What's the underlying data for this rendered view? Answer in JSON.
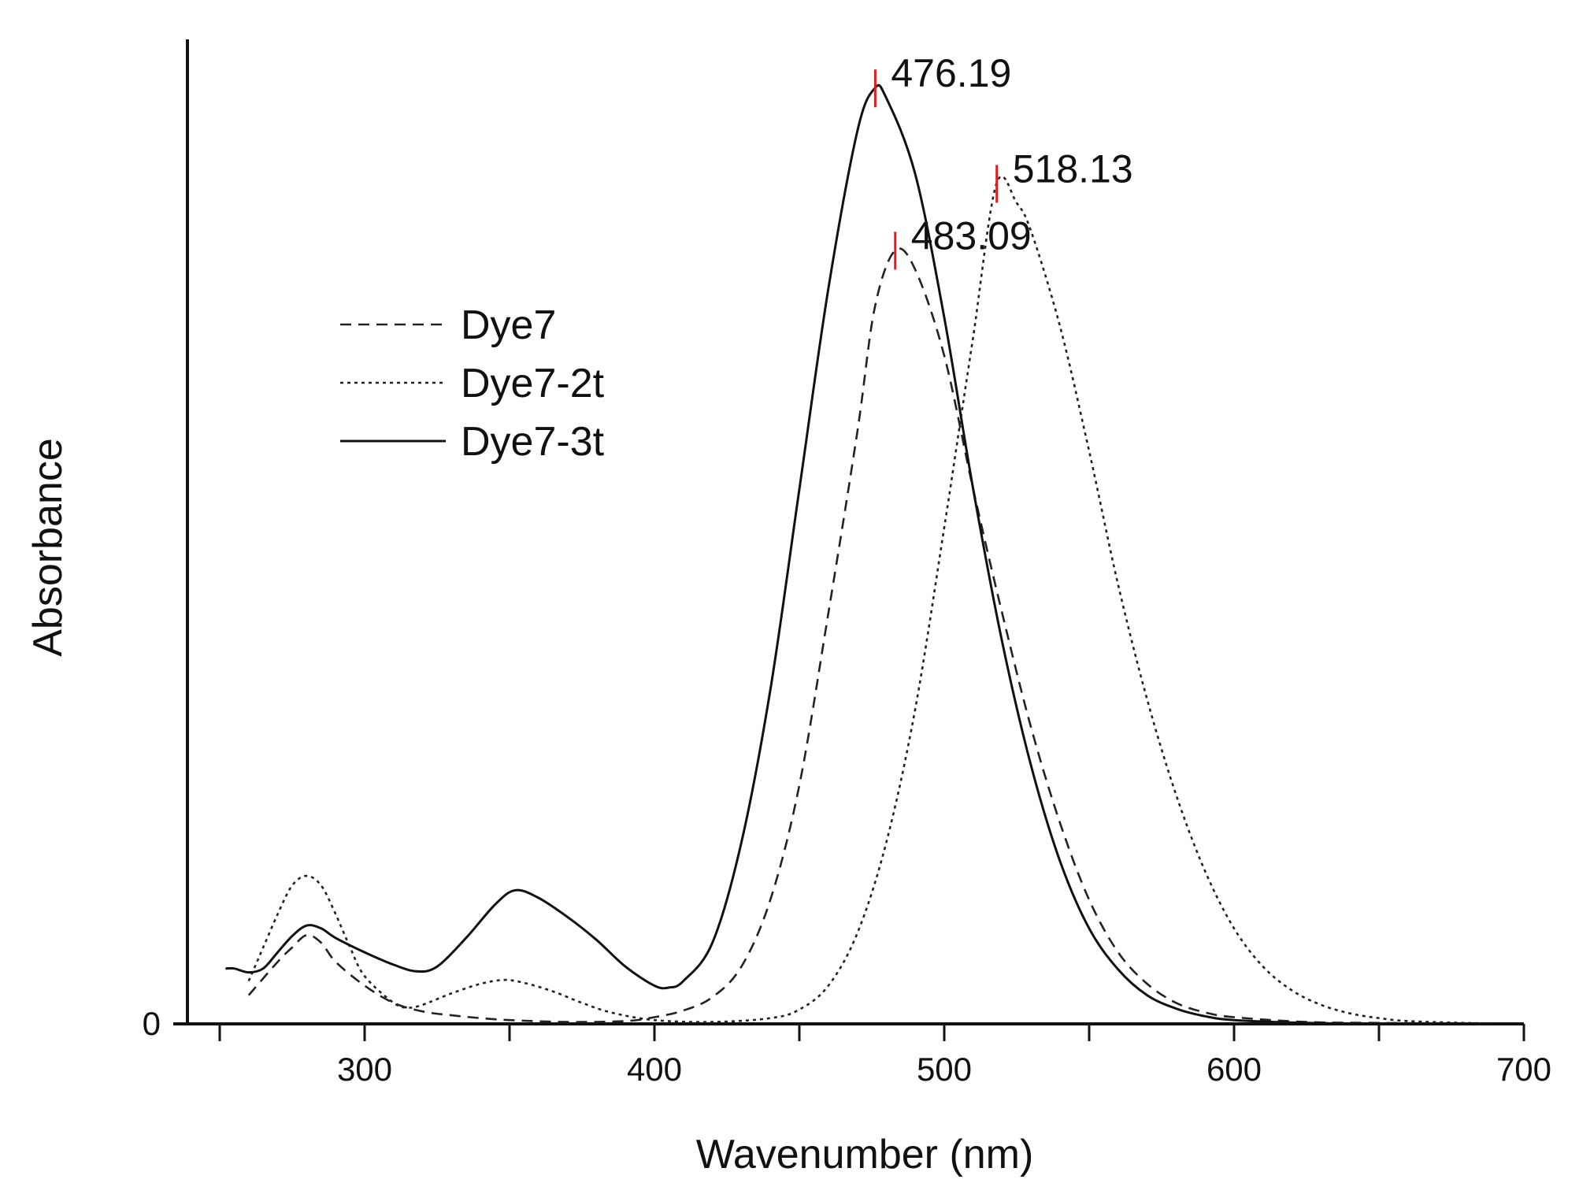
{
  "chart_data": {
    "type": "line",
    "title": "",
    "xlabel": "Wavenumber (nm)",
    "ylabel": "Absorbance",
    "xlim": [
      250,
      700
    ],
    "ylim": [
      0,
      1.0
    ],
    "x_ticks": [
      300,
      400,
      500,
      600,
      700
    ],
    "x_minor_ticks": [
      250,
      350,
      450,
      550,
      650
    ],
    "y_ticks": [
      0
    ],
    "grid": false,
    "legend_position": "left",
    "series": [
      {
        "name": "Dye7",
        "style": "dashed",
        "color": "#222222",
        "peak_nm": 483.09,
        "points": [
          [
            260,
            0.03
          ],
          [
            270,
            0.065
          ],
          [
            275,
            0.08
          ],
          [
            280,
            0.093
          ],
          [
            285,
            0.085
          ],
          [
            290,
            0.065
          ],
          [
            300,
            0.04
          ],
          [
            310,
            0.022
          ],
          [
            320,
            0.013
          ],
          [
            330,
            0.009
          ],
          [
            340,
            0.006
          ],
          [
            350,
            0.004
          ],
          [
            370,
            0.002
          ],
          [
            390,
            0.003
          ],
          [
            400,
            0.007
          ],
          [
            410,
            0.014
          ],
          [
            420,
            0.028
          ],
          [
            430,
            0.06
          ],
          [
            440,
            0.13
          ],
          [
            450,
            0.25
          ],
          [
            460,
            0.43
          ],
          [
            470,
            0.62
          ],
          [
            476,
            0.75
          ],
          [
            483,
            0.81
          ],
          [
            490,
            0.79
          ],
          [
            500,
            0.7
          ],
          [
            510,
            0.56
          ],
          [
            520,
            0.43
          ],
          [
            530,
            0.31
          ],
          [
            540,
            0.21
          ],
          [
            550,
            0.13
          ],
          [
            560,
            0.075
          ],
          [
            570,
            0.042
          ],
          [
            580,
            0.022
          ],
          [
            590,
            0.012
          ],
          [
            600,
            0.007
          ],
          [
            625,
            0.002
          ],
          [
            650,
            0.001
          ],
          [
            700,
            0.0
          ]
        ]
      },
      {
        "name": "Dye7-2t",
        "style": "dotted",
        "color": "#222222",
        "peak_nm": 518.13,
        "points": [
          [
            260,
            0.045
          ],
          [
            265,
            0.08
          ],
          [
            270,
            0.115
          ],
          [
            275,
            0.145
          ],
          [
            280,
            0.155
          ],
          [
            285,
            0.145
          ],
          [
            290,
            0.115
          ],
          [
            295,
            0.08
          ],
          [
            300,
            0.05
          ],
          [
            310,
            0.022
          ],
          [
            315,
            0.017
          ],
          [
            320,
            0.02
          ],
          [
            330,
            0.032
          ],
          [
            340,
            0.042
          ],
          [
            348,
            0.046
          ],
          [
            355,
            0.043
          ],
          [
            365,
            0.034
          ],
          [
            375,
            0.022
          ],
          [
            385,
            0.012
          ],
          [
            400,
            0.004
          ],
          [
            420,
            0.002
          ],
          [
            440,
            0.006
          ],
          [
            450,
            0.015
          ],
          [
            460,
            0.04
          ],
          [
            470,
            0.095
          ],
          [
            480,
            0.19
          ],
          [
            490,
            0.33
          ],
          [
            500,
            0.52
          ],
          [
            505,
            0.62
          ],
          [
            510,
            0.72
          ],
          [
            518,
            0.88
          ],
          [
            525,
            0.86
          ],
          [
            530,
            0.83
          ],
          [
            540,
            0.73
          ],
          [
            550,
            0.6
          ],
          [
            560,
            0.46
          ],
          [
            570,
            0.34
          ],
          [
            580,
            0.24
          ],
          [
            590,
            0.16
          ],
          [
            600,
            0.1
          ],
          [
            610,
            0.06
          ],
          [
            620,
            0.035
          ],
          [
            630,
            0.02
          ],
          [
            640,
            0.011
          ],
          [
            650,
            0.006
          ],
          [
            660,
            0.003
          ],
          [
            680,
            0.001
          ],
          [
            700,
            0.0
          ]
        ]
      },
      {
        "name": "Dye7-3t",
        "style": "solid",
        "color": "#111111",
        "peak_nm": 476.19,
        "points": [
          [
            252,
            0.058
          ],
          [
            255,
            0.058
          ],
          [
            260,
            0.054
          ],
          [
            265,
            0.058
          ],
          [
            270,
            0.075
          ],
          [
            275,
            0.092
          ],
          [
            280,
            0.103
          ],
          [
            285,
            0.1
          ],
          [
            290,
            0.09
          ],
          [
            300,
            0.075
          ],
          [
            310,
            0.062
          ],
          [
            318,
            0.055
          ],
          [
            325,
            0.06
          ],
          [
            335,
            0.09
          ],
          [
            345,
            0.125
          ],
          [
            352,
            0.14
          ],
          [
            360,
            0.132
          ],
          [
            370,
            0.112
          ],
          [
            380,
            0.088
          ],
          [
            390,
            0.06
          ],
          [
            400,
            0.04
          ],
          [
            405,
            0.038
          ],
          [
            410,
            0.045
          ],
          [
            420,
            0.085
          ],
          [
            430,
            0.19
          ],
          [
            440,
            0.35
          ],
          [
            450,
            0.56
          ],
          [
            460,
            0.77
          ],
          [
            470,
            0.935
          ],
          [
            476,
            0.98
          ],
          [
            480,
            0.97
          ],
          [
            490,
            0.89
          ],
          [
            500,
            0.74
          ],
          [
            510,
            0.56
          ],
          [
            520,
            0.4
          ],
          [
            530,
            0.27
          ],
          [
            540,
            0.17
          ],
          [
            550,
            0.1
          ],
          [
            560,
            0.057
          ],
          [
            570,
            0.03
          ],
          [
            580,
            0.016
          ],
          [
            590,
            0.008
          ],
          [
            600,
            0.004
          ],
          [
            625,
            0.001
          ],
          [
            650,
            0.0
          ],
          [
            700,
            0.0
          ]
        ]
      }
    ],
    "annotations": [
      {
        "label": "476.19",
        "x": 476.19,
        "y": 0.98,
        "marker_color": "#e41a1c"
      },
      {
        "label": "518.13",
        "x": 518.13,
        "y": 0.88,
        "marker_color": "#e41a1c"
      },
      {
        "label": "483.09",
        "x": 483.09,
        "y": 0.81,
        "marker_color": "#e41a1c"
      }
    ]
  }
}
